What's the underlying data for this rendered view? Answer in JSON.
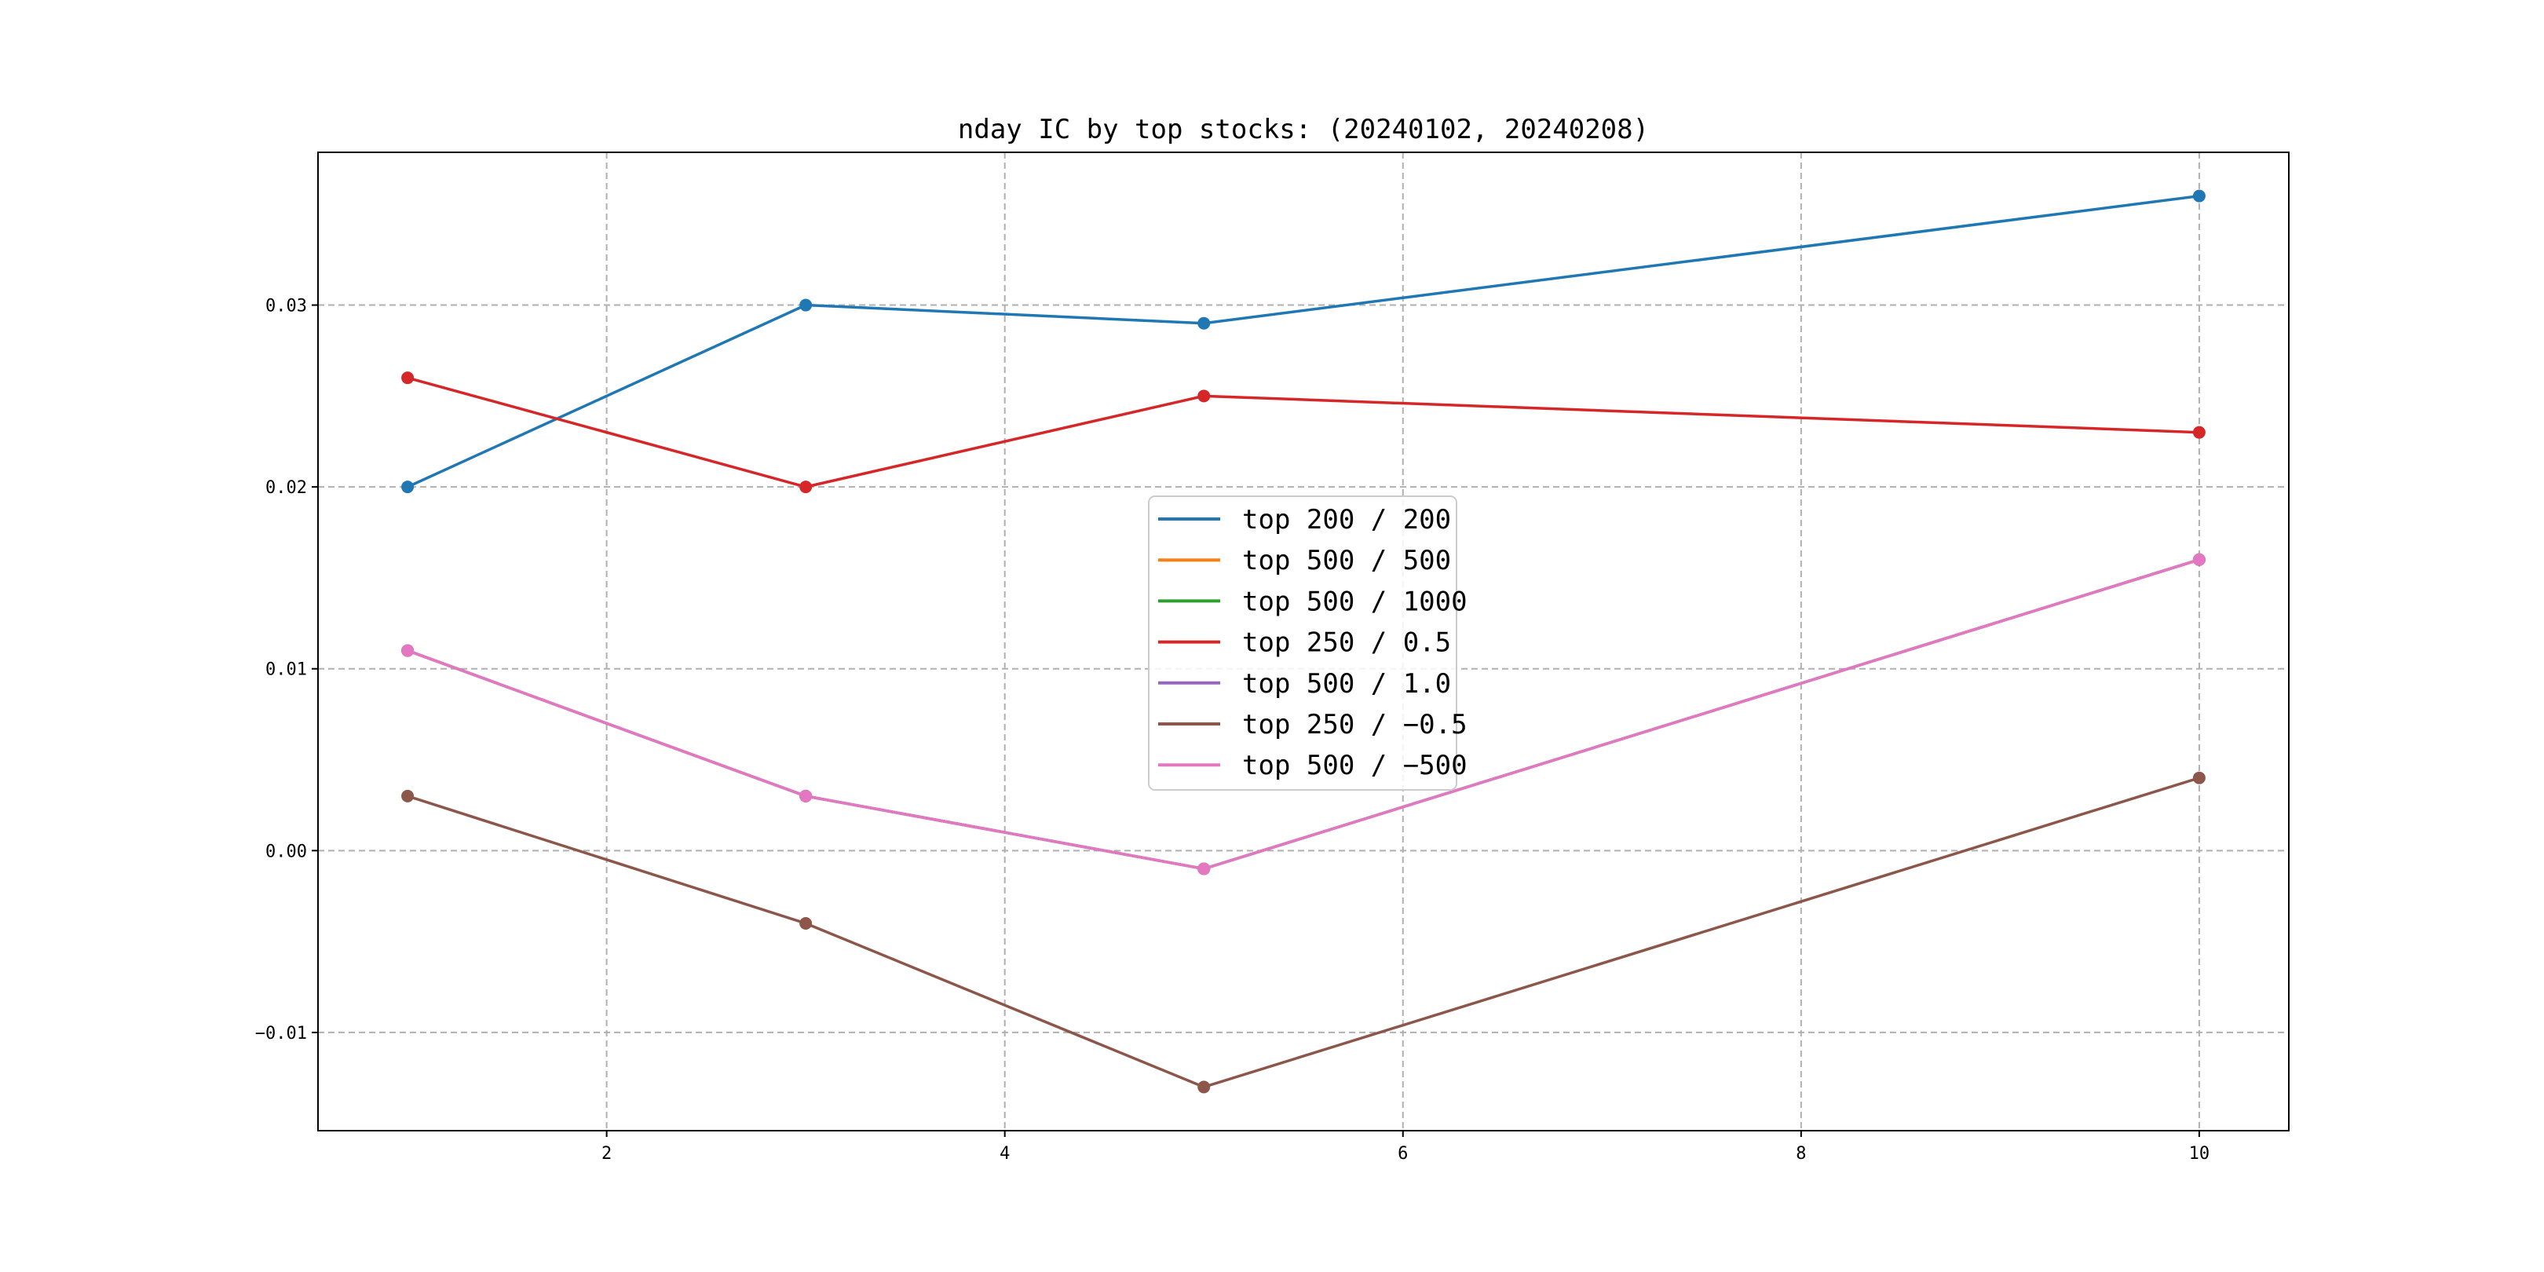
{
  "chart_data": {
    "type": "line",
    "title": "nday IC by top stocks: (20240102, 20240208)",
    "xlabel": "",
    "ylabel": "",
    "xlim": [
      0.55,
      10.45
    ],
    "ylim": [
      -0.0154,
      0.0384
    ],
    "xticks": [
      2,
      4,
      6,
      8,
      10
    ],
    "xtick_labels": [
      "2",
      "4",
      "6",
      "8",
      "10"
    ],
    "yticks": [
      -0.01,
      0.0,
      0.01,
      0.02,
      0.03
    ],
    "ytick_labels": [
      "−0.01",
      "0.00",
      "0.01",
      "0.02",
      "0.03"
    ],
    "grid": true,
    "legend_position": "center",
    "x": [
      1,
      3,
      5,
      10
    ],
    "series": [
      {
        "name": "top 200 / 200",
        "color": "#1f77b4",
        "values": [
          0.02,
          0.03,
          0.029,
          0.036
        ]
      },
      {
        "name": "top 500 / 500",
        "color": "#ff7f0e",
        "values": [
          0.011,
          0.003,
          -0.001,
          0.016
        ]
      },
      {
        "name": "top 500 / 1000",
        "color": "#2ca02c",
        "values": [
          0.011,
          0.003,
          -0.001,
          0.016
        ]
      },
      {
        "name": "top 250 / 0.5",
        "color": "#d62728",
        "values": [
          0.026,
          0.02,
          0.025,
          0.023
        ]
      },
      {
        "name": "top 500 / 1.0",
        "color": "#9467bd",
        "values": [
          0.011,
          0.003,
          -0.001,
          0.016
        ]
      },
      {
        "name": "top 250 / −0.5",
        "color": "#8c564b",
        "values": [
          0.003,
          -0.004,
          -0.013,
          0.004
        ]
      },
      {
        "name": "top 500 / −500",
        "color": "#e377c2",
        "values": [
          0.011,
          0.003,
          -0.001,
          0.016
        ]
      }
    ]
  }
}
